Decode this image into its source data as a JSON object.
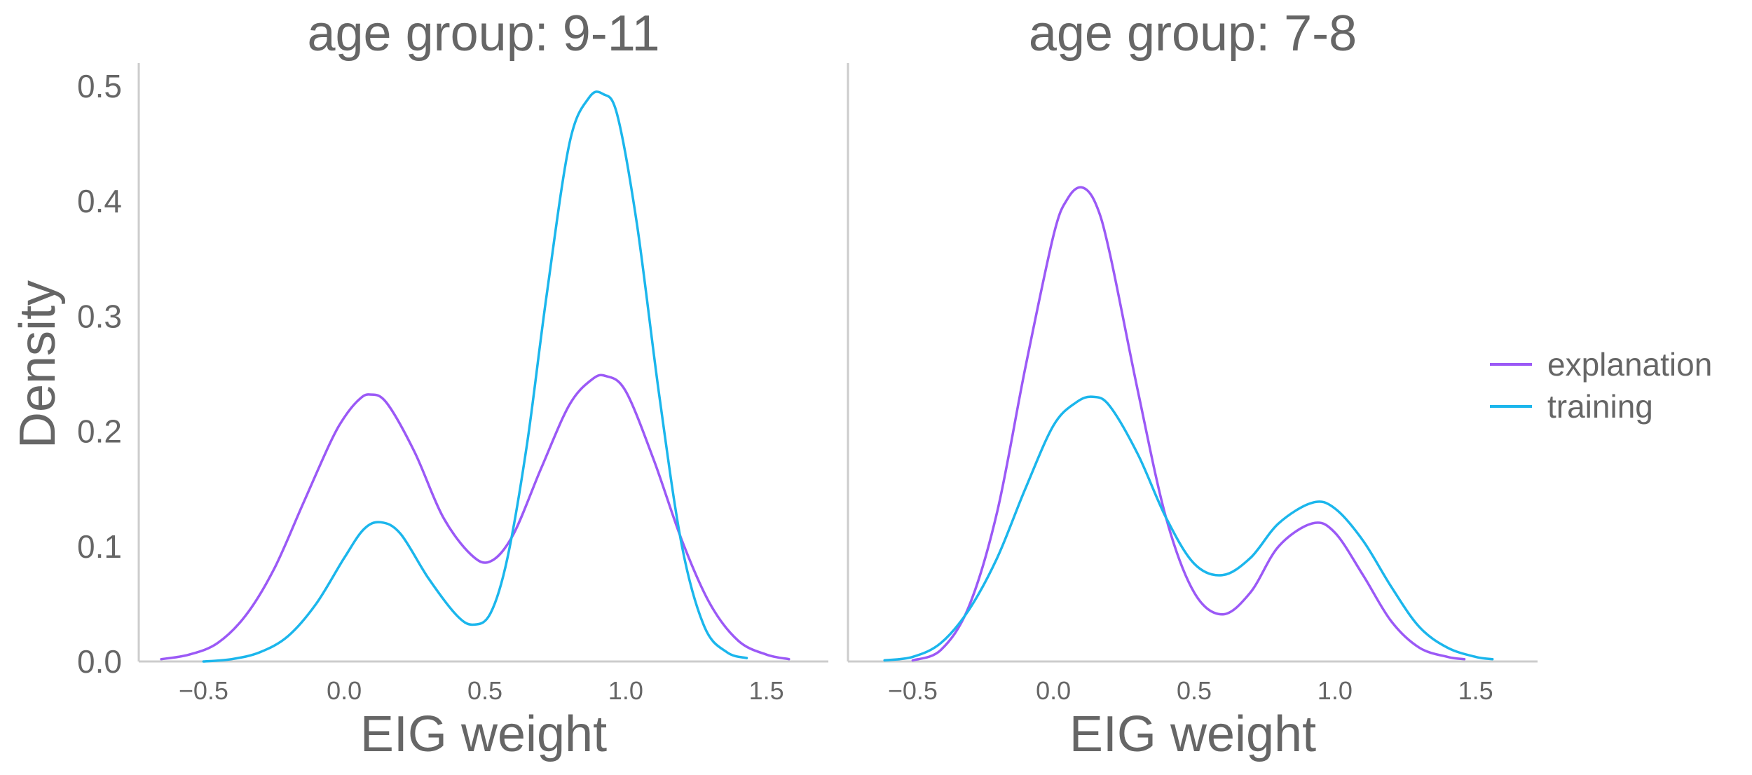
{
  "chart_data": {
    "type": "line",
    "ylabel": "Density",
    "ylim": [
      0,
      0.52
    ],
    "yticks": [
      "0.0",
      "0.1",
      "0.2",
      "0.3",
      "0.4",
      "0.5"
    ],
    "xticks": [
      "−0.5",
      "0.0",
      "0.5",
      "1.0",
      "1.5"
    ],
    "xtick_values": [
      -0.5,
      0.0,
      0.5,
      1.0,
      1.5
    ],
    "xlim": [
      -0.73,
      1.72
    ],
    "legend": {
      "position": "right",
      "entries": [
        {
          "name": "explanation",
          "color": "#9B59F6"
        },
        {
          "name": "training",
          "color": "#1BB6EC"
        }
      ]
    },
    "panels": [
      {
        "title": "age group: 9-11",
        "xlabel": "EIG weight",
        "series": [
          {
            "name": "explanation",
            "color": "#9B59F6",
            "x": [
              -0.65,
              -0.55,
              -0.45,
              -0.35,
              -0.25,
              -0.15,
              -0.05,
              0.0,
              0.05,
              0.09,
              0.15,
              0.25,
              0.35,
              0.45,
              0.52,
              0.6,
              0.7,
              0.8,
              0.88,
              0.93,
              1.0,
              1.1,
              1.2,
              1.3,
              1.4,
              1.5,
              1.58
            ],
            "y": [
              0.002,
              0.006,
              0.016,
              0.04,
              0.08,
              0.135,
              0.19,
              0.212,
              0.227,
              0.232,
              0.225,
              0.182,
              0.126,
              0.093,
              0.087,
              0.11,
              0.168,
              0.223,
              0.245,
              0.248,
              0.235,
              0.175,
              0.105,
              0.05,
              0.018,
              0.006,
              0.002
            ]
          },
          {
            "name": "training",
            "color": "#1BB6EC",
            "x": [
              -0.5,
              -0.4,
              -0.3,
              -0.2,
              -0.1,
              0.0,
              0.07,
              0.13,
              0.2,
              0.3,
              0.4,
              0.46,
              0.52,
              0.58,
              0.65,
              0.72,
              0.8,
              0.87,
              0.92,
              0.97,
              1.04,
              1.12,
              1.2,
              1.28,
              1.36,
              1.43
            ],
            "y": [
              0.0,
              0.002,
              0.008,
              0.022,
              0.05,
              0.09,
              0.115,
              0.121,
              0.111,
              0.072,
              0.04,
              0.032,
              0.042,
              0.09,
              0.19,
              0.32,
              0.45,
              0.49,
              0.493,
              0.475,
              0.38,
              0.23,
              0.1,
              0.03,
              0.008,
              0.003
            ]
          }
        ]
      },
      {
        "title": "age group: 7-8",
        "xlabel": "EIG weight",
        "series": [
          {
            "name": "explanation",
            "color": "#9B59F6",
            "x": [
              -0.5,
              -0.4,
              -0.3,
              -0.2,
              -0.1,
              0.0,
              0.05,
              0.1,
              0.15,
              0.2,
              0.3,
              0.4,
              0.5,
              0.6,
              0.7,
              0.8,
              0.92,
              1.0,
              1.1,
              1.2,
              1.3,
              1.4,
              1.46
            ],
            "y": [
              0.001,
              0.01,
              0.048,
              0.13,
              0.255,
              0.37,
              0.402,
              0.412,
              0.398,
              0.355,
              0.235,
              0.125,
              0.06,
              0.041,
              0.06,
              0.1,
              0.12,
              0.112,
              0.075,
              0.035,
              0.012,
              0.004,
              0.002
            ]
          },
          {
            "name": "training",
            "color": "#1BB6EC",
            "x": [
              -0.6,
              -0.5,
              -0.4,
              -0.3,
              -0.2,
              -0.1,
              0.0,
              0.08,
              0.14,
              0.2,
              0.3,
              0.4,
              0.5,
              0.6,
              0.7,
              0.8,
              0.92,
              1.0,
              1.1,
              1.2,
              1.3,
              1.4,
              1.5,
              1.56
            ],
            "y": [
              0.001,
              0.004,
              0.016,
              0.045,
              0.09,
              0.15,
              0.205,
              0.225,
              0.23,
              0.222,
              0.18,
              0.125,
              0.085,
              0.075,
              0.09,
              0.12,
              0.138,
              0.133,
              0.105,
              0.065,
              0.03,
              0.012,
              0.004,
              0.002
            ]
          }
        ]
      }
    ]
  }
}
